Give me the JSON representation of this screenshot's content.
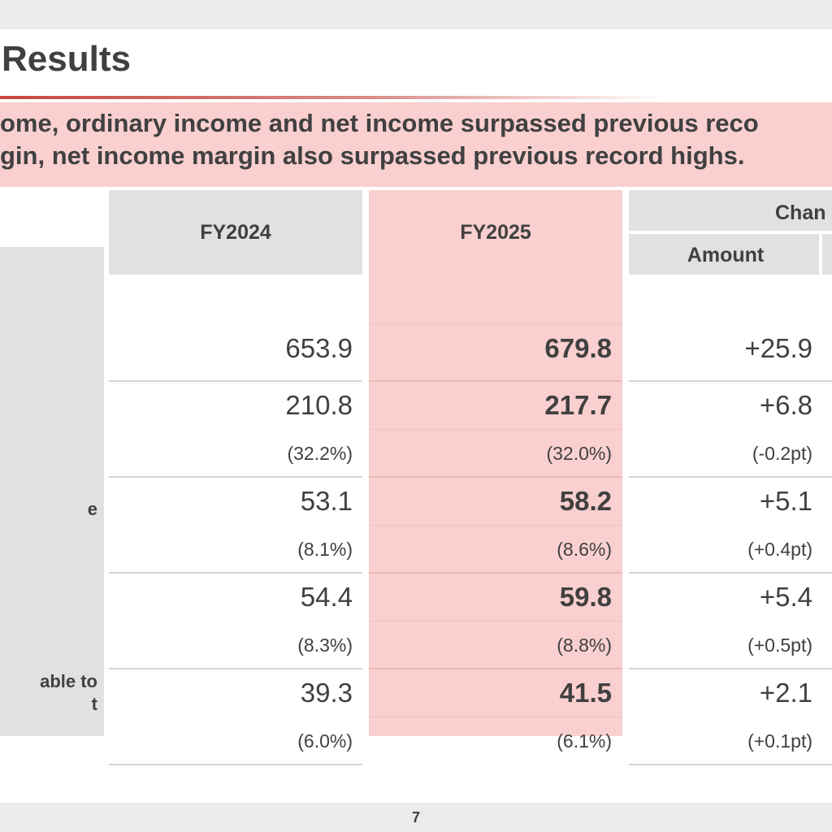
{
  "slide": {
    "title": "Results",
    "banner": [
      "ome, ordinary income and net income surpassed previous reco",
      "gin, net income margin also surpassed previous record highs."
    ],
    "page_number": "7"
  },
  "table": {
    "headers": {
      "fy2024": "FY2024",
      "fy2025": "FY2025",
      "change": "Chan",
      "amount": "Amount"
    },
    "rows": [
      {
        "label_lines": [],
        "fy2024": "653.9",
        "fy2024_sub": "",
        "fy2025": "679.8",
        "fy2025_sub": "",
        "change": "+25.9",
        "change_sub": ""
      },
      {
        "label_lines": [],
        "fy2024": "210.8",
        "fy2024_sub": "(32.2%)",
        "fy2025": "217.7",
        "fy2025_sub": "(32.0%)",
        "change": "+6.8",
        "change_sub": "(-0.2pt)"
      },
      {
        "label_lines": [
          "e"
        ],
        "fy2024": "53.1",
        "fy2024_sub": "(8.1%)",
        "fy2025": "58.2",
        "fy2025_sub": "(8.6%)",
        "change": "+5.1",
        "change_sub": "(+0.4pt)"
      },
      {
        "label_lines": [],
        "fy2024": "54.4",
        "fy2024_sub": "(8.3%)",
        "fy2025": "59.8",
        "fy2025_sub": "(8.8%)",
        "change": "+5.4",
        "change_sub": "(+0.5pt)"
      },
      {
        "label_lines": [
          "able to",
          "t"
        ],
        "fy2024": "39.3",
        "fy2024_sub": "(6.0%)",
        "fy2025": "41.5",
        "fy2025_sub": "(6.1%)",
        "change": "+2.1",
        "change_sub": "(+0.1pt)"
      }
    ]
  }
}
